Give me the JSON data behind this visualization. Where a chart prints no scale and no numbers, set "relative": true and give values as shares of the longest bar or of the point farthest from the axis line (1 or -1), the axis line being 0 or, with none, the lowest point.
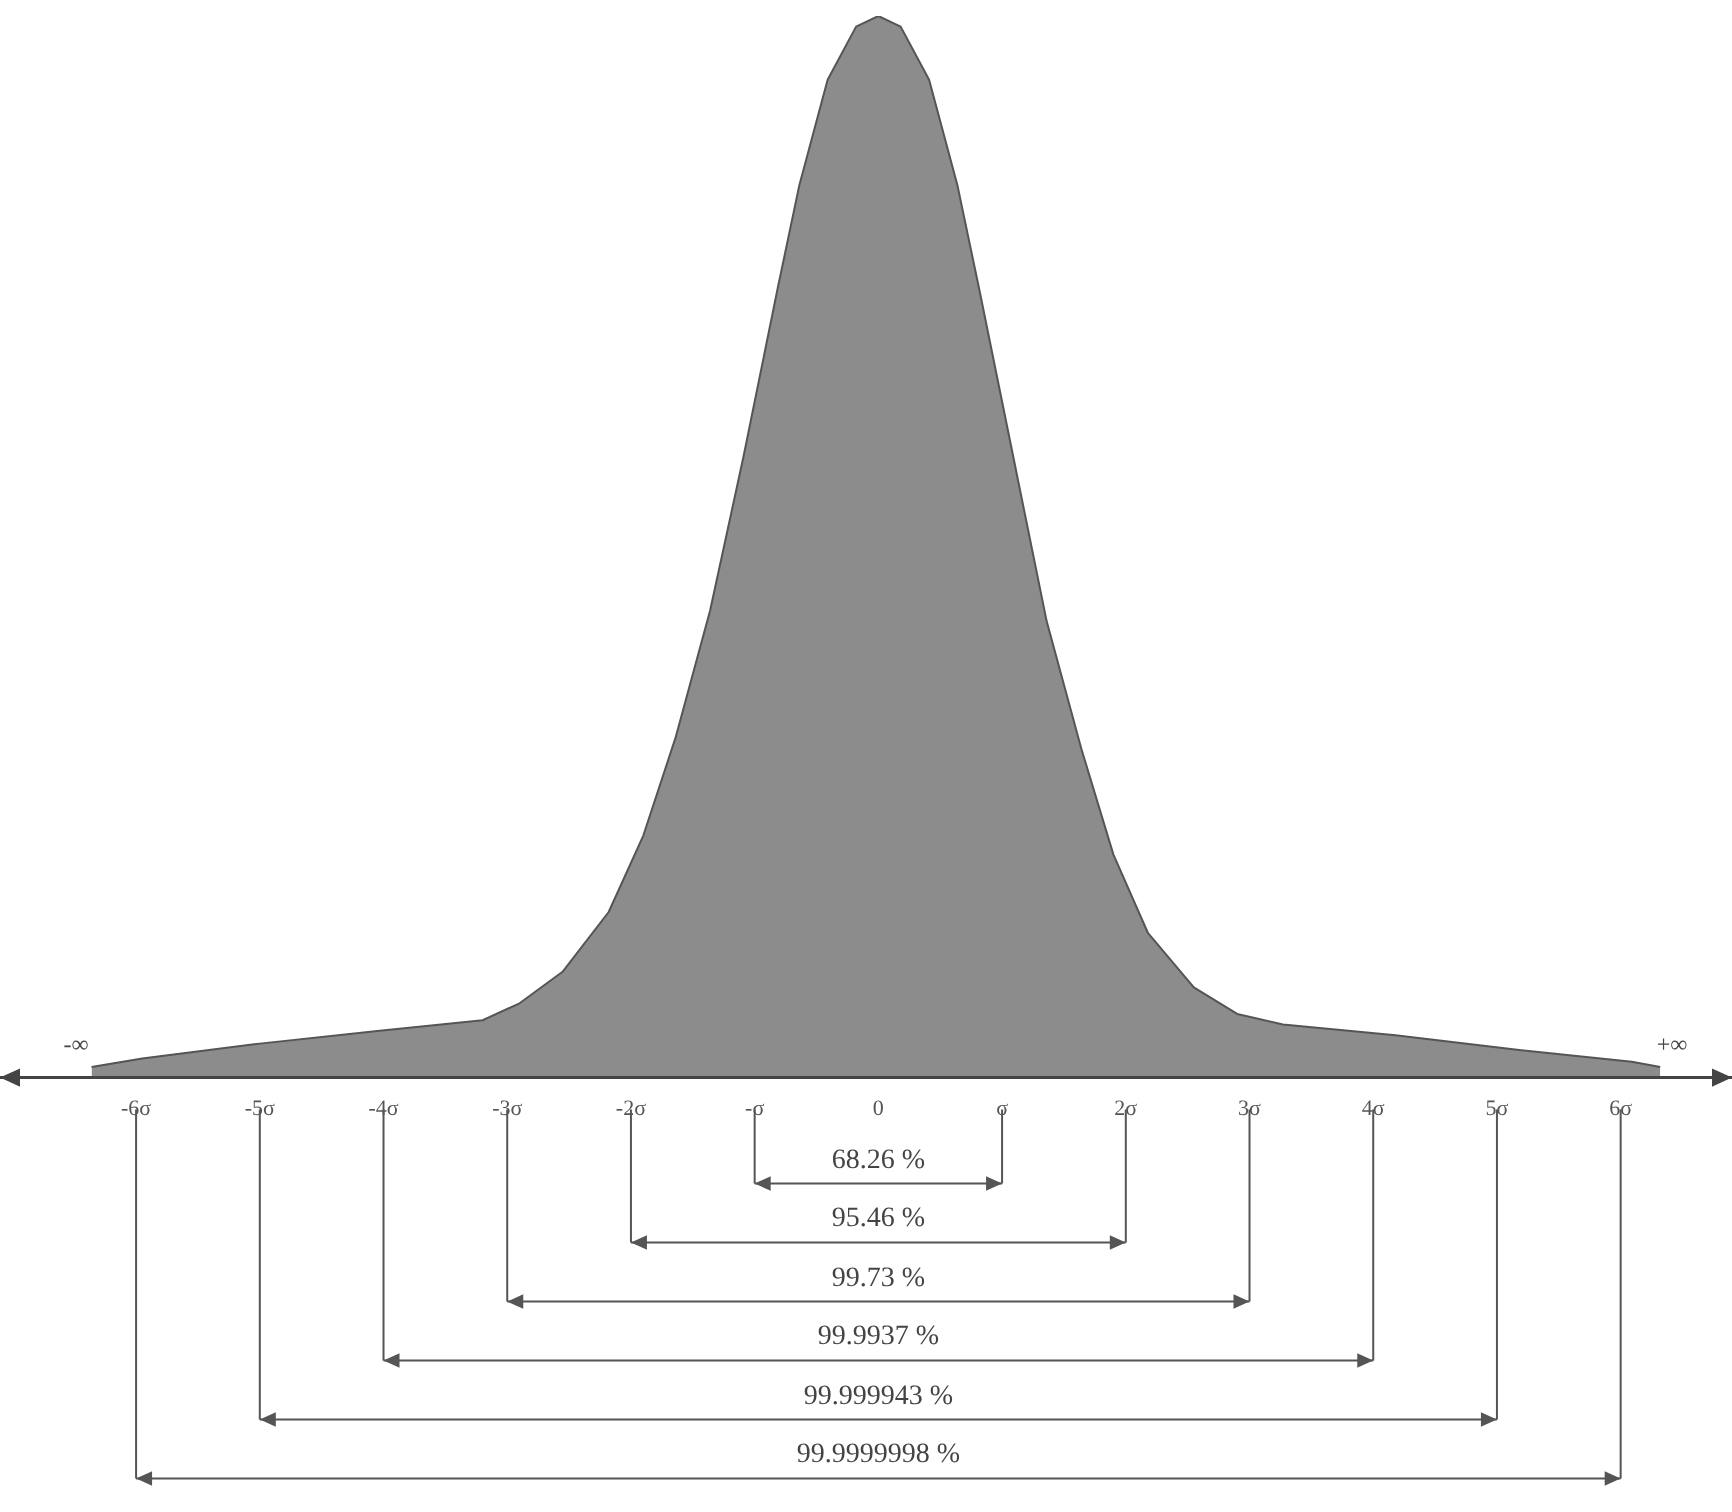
{
  "chart_data": {
    "type": "area",
    "relative": true,
    "color": "#8c8c8c",
    "x": [
      -6.36,
      -5.95,
      -5,
      -4.05,
      -3.2,
      -2.9,
      -2.55,
      -2.18,
      -1.9,
      -1.64,
      -1.36,
      -1.09,
      -0.82,
      -0.64,
      -0.41,
      -0.18,
      0,
      0.18,
      0.41,
      0.64,
      0.82,
      1.09,
      1.36,
      1.64,
      1.9,
      2.18,
      2.55,
      2.9,
      3.27,
      4.18,
      5.18,
      6.09,
      6.32
    ],
    "values": [
      0.01,
      0.018,
      0.032,
      0.044,
      0.054,
      0.07,
      0.1,
      0.156,
      0.228,
      0.32,
      0.44,
      0.585,
      0.74,
      0.84,
      0.94,
      0.99,
      1,
      0.99,
      0.94,
      0.84,
      0.74,
      0.585,
      0.43,
      0.31,
      0.21,
      0.136,
      0.085,
      0.06,
      0.05,
      0.04,
      0.026,
      0.015,
      0.01
    ],
    "xlim": [
      -7.1,
      6.9
    ],
    "xticks": [
      {
        "value": -6,
        "label": "-6σ"
      },
      {
        "value": -5,
        "label": "-5σ"
      },
      {
        "value": -4,
        "label": "-4σ"
      },
      {
        "value": -3,
        "label": "-3σ"
      },
      {
        "value": -2,
        "label": "-2σ"
      },
      {
        "value": -1,
        "label": "-σ"
      },
      0,
      {
        "value": 1,
        "label": "σ"
      },
      {
        "value": 2,
        "label": "2σ"
      },
      {
        "value": 3,
        "label": "3σ"
      },
      {
        "value": 4,
        "label": "4σ"
      },
      {
        "value": 5,
        "label": "5σ"
      },
      {
        "value": 6,
        "label": "6σ"
      }
    ],
    "annotations": [
      "-∞",
      "+∞",
      "68.26 %",
      "95.46 %",
      "99.73 %",
      "99.9937 %",
      "99.999943 %",
      "99.9999998 %"
    ]
  }
}
